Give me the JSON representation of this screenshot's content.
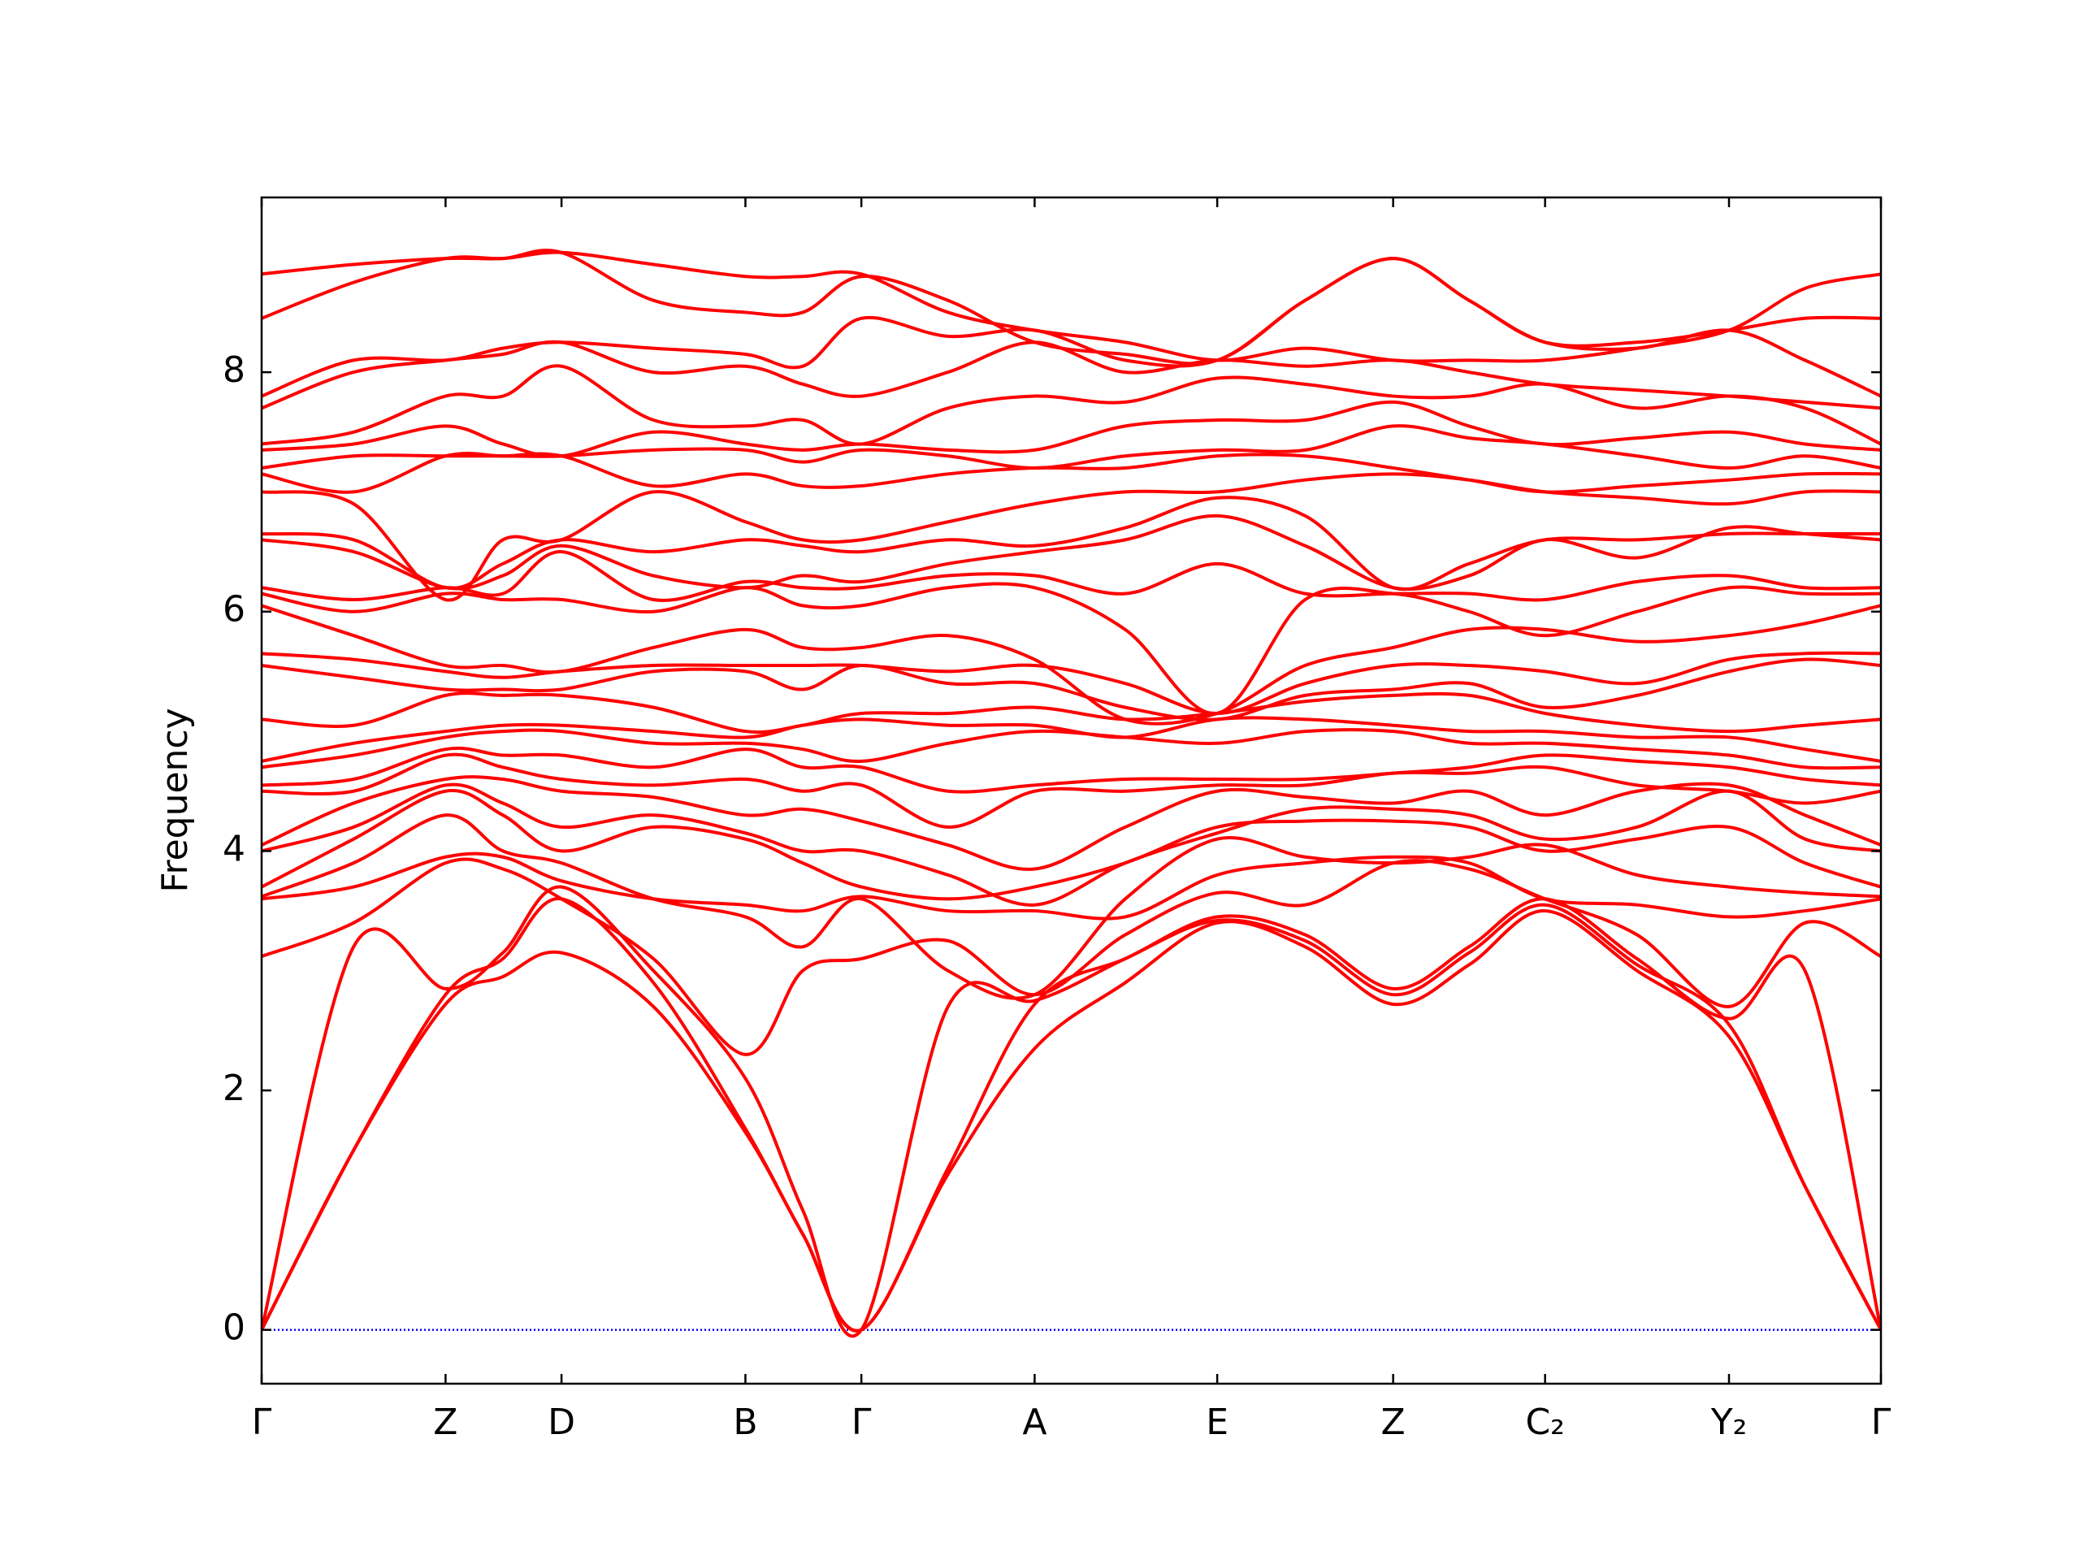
{
  "chart_data": {
    "type": "line",
    "ylabel": "Frequency",
    "line_color": "#ff0000",
    "zero_line": {
      "value": 0,
      "color": "#0000ff"
    },
    "xlim": [
      0,
      1215
    ],
    "ylim": [
      -0.45,
      9.46
    ],
    "xticks": [
      {
        "value": 0,
        "label": "Γ"
      },
      {
        "value": 138,
        "label": "Z"
      },
      {
        "value": 225,
        "label": "D"
      },
      {
        "value": 363,
        "label": "B"
      },
      {
        "value": 450,
        "label": "Γ"
      },
      {
        "value": 580,
        "label": "A"
      },
      {
        "value": 717,
        "label": "E"
      },
      {
        "value": 849,
        "label": "Z"
      },
      {
        "value": 963,
        "label": "C₂"
      },
      {
        "value": 1101,
        "label": "Y₂"
      },
      {
        "value": 1215,
        "label": "Γ"
      }
    ],
    "yticks": [
      0,
      2,
      4,
      6,
      8
    ],
    "x": [
      0,
      69,
      138,
      181,
      225,
      294,
      363,
      406,
      450,
      515,
      580,
      648,
      717,
      783,
      849,
      906,
      963,
      1032,
      1101,
      1158,
      1215
    ],
    "series": [
      {
        "values": [
          0,
          1.5,
          2.72,
          2.95,
          3.15,
          2.7,
          1.65,
          0.8,
          0,
          1.3,
          2.35,
          2.9,
          3.4,
          3.2,
          2.72,
          3.05,
          3.5,
          3.0,
          2.45,
          1.2,
          0
        ]
      },
      {
        "values": [
          0,
          1.5,
          2.8,
          3.1,
          3.6,
          2.9,
          1.68,
          0.8,
          0,
          1.35,
          2.72,
          3.1,
          3.42,
          3.25,
          2.8,
          3.15,
          3.55,
          3.05,
          2.55,
          1.2,
          0
        ]
      },
      {
        "values": [
          0,
          3.2,
          2.85,
          3.15,
          3.7,
          3.0,
          2.1,
          1.0,
          0,
          2.7,
          2.75,
          3.1,
          3.45,
          3.3,
          2.85,
          3.2,
          3.6,
          3.1,
          2.6,
          3.0,
          0
        ]
      },
      {
        "values": [
          3.12,
          3.4,
          3.9,
          3.85,
          3.6,
          3.1,
          2.3,
          3.0,
          3.1,
          3.25,
          2.8,
          3.3,
          3.65,
          3.55,
          3.9,
          3.85,
          3.6,
          3.3,
          2.7,
          3.4,
          3.12
        ]
      },
      {
        "values": [
          3.6,
          3.7,
          3.95,
          3.95,
          3.75,
          3.6,
          3.55,
          3.5,
          3.62,
          3.5,
          3.5,
          3.45,
          3.8,
          3.9,
          3.95,
          3.9,
          3.6,
          3.55,
          3.45,
          3.5,
          3.6
        ]
      },
      {
        "values": [
          3.62,
          3.9,
          4.3,
          4.0,
          3.9,
          3.6,
          3.45,
          3.2,
          3.6,
          3.0,
          2.8,
          3.6,
          4.1,
          3.95,
          3.9,
          3.95,
          4.05,
          3.8,
          3.7,
          3.65,
          3.62
        ]
      },
      {
        "values": [
          3.7,
          4.1,
          4.5,
          4.3,
          4.0,
          4.2,
          4.1,
          3.9,
          3.7,
          3.6,
          3.7,
          3.9,
          4.2,
          4.25,
          4.25,
          4.2,
          4.0,
          4.1,
          4.2,
          3.9,
          3.7
        ]
      },
      {
        "values": [
          4.0,
          4.2,
          4.55,
          4.4,
          4.2,
          4.3,
          4.15,
          4.0,
          4.0,
          3.8,
          3.55,
          3.9,
          4.15,
          4.35,
          4.35,
          4.3,
          4.1,
          4.2,
          4.5,
          4.1,
          4.0
        ]
      },
      {
        "values": [
          4.05,
          4.4,
          4.6,
          4.6,
          4.5,
          4.45,
          4.3,
          4.35,
          4.25,
          4.05,
          3.85,
          4.2,
          4.5,
          4.45,
          4.4,
          4.5,
          4.3,
          4.5,
          4.55,
          4.3,
          4.05
        ]
      },
      {
        "values": [
          4.5,
          4.5,
          4.8,
          4.7,
          4.6,
          4.55,
          4.6,
          4.5,
          4.55,
          4.2,
          4.5,
          4.5,
          4.55,
          4.55,
          4.65,
          4.65,
          4.7,
          4.55,
          4.5,
          4.4,
          4.5
        ]
      },
      {
        "values": [
          4.55,
          4.6,
          4.85,
          4.8,
          4.8,
          4.7,
          4.85,
          4.7,
          4.7,
          4.5,
          4.55,
          4.6,
          4.6,
          4.6,
          4.65,
          4.7,
          4.8,
          4.75,
          4.7,
          4.6,
          4.55
        ]
      },
      {
        "values": [
          4.7,
          4.8,
          4.95,
          5.0,
          5.0,
          4.9,
          4.9,
          4.85,
          4.75,
          4.9,
          5.0,
          4.95,
          4.9,
          5.0,
          5.0,
          4.9,
          4.9,
          4.85,
          4.8,
          4.7,
          4.7
        ]
      },
      {
        "values": [
          4.75,
          4.9,
          5.0,
          5.05,
          5.05,
          5.0,
          4.95,
          5.05,
          5.1,
          5.05,
          5.05,
          4.95,
          5.1,
          5.1,
          5.05,
          5.0,
          5.0,
          4.95,
          4.95,
          4.85,
          4.75
        ]
      },
      {
        "values": [
          5.1,
          5.05,
          5.3,
          5.3,
          5.3,
          5.2,
          5.0,
          5.05,
          5.15,
          5.15,
          5.2,
          5.1,
          5.15,
          5.25,
          5.3,
          5.3,
          5.15,
          5.05,
          5.0,
          5.05,
          5.1
        ]
      },
      {
        "values": [
          5.55,
          5.45,
          5.35,
          5.35,
          5.35,
          5.5,
          5.5,
          5.35,
          5.55,
          5.4,
          5.4,
          5.2,
          5.1,
          5.3,
          5.35,
          5.4,
          5.2,
          5.3,
          5.5,
          5.6,
          5.55
        ]
      },
      {
        "values": [
          5.65,
          5.6,
          5.5,
          5.45,
          5.5,
          5.55,
          5.55,
          5.55,
          5.55,
          5.5,
          5.55,
          5.4,
          5.15,
          5.4,
          5.55,
          5.55,
          5.5,
          5.4,
          5.6,
          5.65,
          5.65
        ]
      },
      {
        "values": [
          6.05,
          5.8,
          5.55,
          5.55,
          5.5,
          5.7,
          5.85,
          5.7,
          5.7,
          5.8,
          5.6,
          5.1,
          5.15,
          5.55,
          5.7,
          5.85,
          5.85,
          5.75,
          5.8,
          5.9,
          6.05
        ]
      },
      {
        "values": [
          6.15,
          6.0,
          6.15,
          6.1,
          6.1,
          6.0,
          6.2,
          6.05,
          6.05,
          6.2,
          6.2,
          5.85,
          5.15,
          6.1,
          6.15,
          6.0,
          5.8,
          6.0,
          6.2,
          6.15,
          6.15
        ]
      },
      {
        "values": [
          6.2,
          6.1,
          6.2,
          6.15,
          6.5,
          6.1,
          6.25,
          6.2,
          6.2,
          6.3,
          6.3,
          6.15,
          6.4,
          6.15,
          6.15,
          6.15,
          6.1,
          6.25,
          6.3,
          6.2,
          6.2
        ]
      },
      {
        "values": [
          6.6,
          6.5,
          6.2,
          6.3,
          6.55,
          6.3,
          6.2,
          6.3,
          6.25,
          6.4,
          6.5,
          6.6,
          6.8,
          6.55,
          6.2,
          6.3,
          6.6,
          6.45,
          6.7,
          6.65,
          6.6
        ]
      },
      {
        "values": [
          6.65,
          6.6,
          6.2,
          6.4,
          6.6,
          6.5,
          6.6,
          6.55,
          6.5,
          6.6,
          6.55,
          6.7,
          6.95,
          6.8,
          6.2,
          6.4,
          6.6,
          6.6,
          6.65,
          6.65,
          6.65
        ]
      },
      {
        "values": [
          7.0,
          6.9,
          6.1,
          6.6,
          6.6,
          7.0,
          6.75,
          6.6,
          6.6,
          6.75,
          6.9,
          7.0,
          7.0,
          7.1,
          7.15,
          7.1,
          7.0,
          6.95,
          6.9,
          7.0,
          7.0
        ]
      },
      {
        "values": [
          7.15,
          7.0,
          7.3,
          7.3,
          7.3,
          7.05,
          7.15,
          7.05,
          7.05,
          7.15,
          7.2,
          7.2,
          7.3,
          7.3,
          7.2,
          7.1,
          7.0,
          7.05,
          7.1,
          7.15,
          7.15
        ]
      },
      {
        "values": [
          7.2,
          7.3,
          7.3,
          7.3,
          7.3,
          7.35,
          7.35,
          7.25,
          7.35,
          7.3,
          7.2,
          7.3,
          7.35,
          7.35,
          7.55,
          7.45,
          7.4,
          7.3,
          7.2,
          7.3,
          7.2
        ]
      },
      {
        "values": [
          7.35,
          7.4,
          7.55,
          7.4,
          7.3,
          7.5,
          7.4,
          7.35,
          7.4,
          7.35,
          7.35,
          7.55,
          7.6,
          7.6,
          7.75,
          7.55,
          7.4,
          7.45,
          7.5,
          7.4,
          7.35
        ]
      },
      {
        "values": [
          7.4,
          7.5,
          7.8,
          7.8,
          8.05,
          7.6,
          7.55,
          7.6,
          7.4,
          7.7,
          7.8,
          7.75,
          7.95,
          7.9,
          7.8,
          7.8,
          7.9,
          7.7,
          7.8,
          7.7,
          7.4
        ]
      },
      {
        "values": [
          7.7,
          8.0,
          8.1,
          8.15,
          8.25,
          8.0,
          8.05,
          7.9,
          7.8,
          8.0,
          8.25,
          8.0,
          8.1,
          8.05,
          8.1,
          8.0,
          7.9,
          7.85,
          7.8,
          7.75,
          7.7
        ]
      },
      {
        "values": [
          7.8,
          8.1,
          8.1,
          8.2,
          8.25,
          8.2,
          8.15,
          8.05,
          8.45,
          8.3,
          8.35,
          8.1,
          8.1,
          8.6,
          8.95,
          8.6,
          8.25,
          8.2,
          8.35,
          8.1,
          7.8
        ]
      },
      {
        "values": [
          8.45,
          8.75,
          8.95,
          8.95,
          9.0,
          8.6,
          8.5,
          8.5,
          8.8,
          8.6,
          8.25,
          8.15,
          8.1,
          8.6,
          8.95,
          8.6,
          8.25,
          8.25,
          8.35,
          8.45,
          8.45
        ]
      },
      {
        "values": [
          8.82,
          8.9,
          8.95,
          8.95,
          9.0,
          8.9,
          8.8,
          8.8,
          8.82,
          8.5,
          8.35,
          8.25,
          8.1,
          8.2,
          8.1,
          8.1,
          8.1,
          8.2,
          8.35,
          8.7,
          8.82
        ]
      }
    ]
  }
}
